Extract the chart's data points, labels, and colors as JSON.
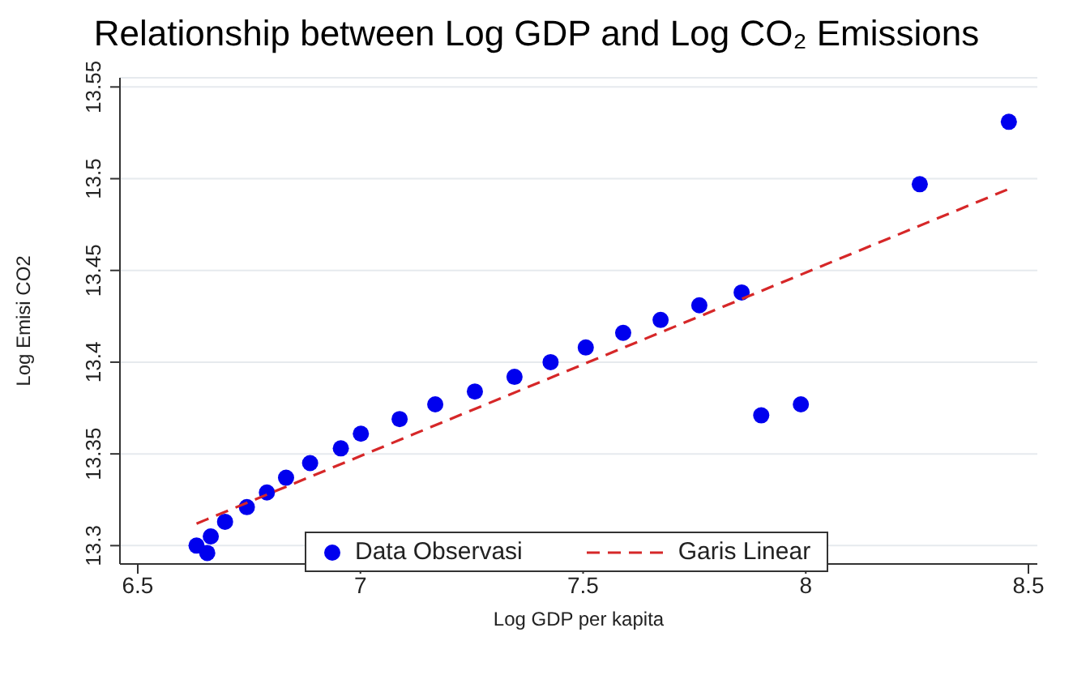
{
  "chart_data": {
    "type": "scatter",
    "title": "Relationship between Log GDP and Log CO₂ Emissions",
    "xlabel": "Log GDP per kapita",
    "ylabel": "Log Emisi CO2",
    "xlim": [
      6.46,
      8.52
    ],
    "xticks": [
      6.5,
      7,
      7.5,
      8,
      8.5
    ],
    "ylim": [
      13.29,
      13.555
    ],
    "yticks": [
      13.3,
      13.35,
      13.4,
      13.45,
      13.5,
      13.55
    ],
    "grid": "y",
    "legend": "bottom",
    "series": [
      {
        "name": "Data Observasi",
        "type": "scatter",
        "marker": "circle",
        "color": "#0000ee",
        "x": [
          6.632,
          6.656,
          6.664,
          6.696,
          6.745,
          6.79,
          6.833,
          6.887,
          6.956,
          7.001,
          7.088,
          7.168,
          7.257,
          7.346,
          7.427,
          7.506,
          7.59,
          7.674,
          7.761,
          7.856,
          7.9,
          7.989,
          8.256,
          8.456
        ],
        "values": [
          13.3,
          13.296,
          13.305,
          13.313,
          13.321,
          13.329,
          13.337,
          13.345,
          13.353,
          13.361,
          13.369,
          13.377,
          13.384,
          13.392,
          13.4,
          13.408,
          13.416,
          13.423,
          13.431,
          13.438,
          13.371,
          13.377,
          13.497,
          13.531
        ]
      },
      {
        "name": "Garis Linear",
        "type": "line",
        "line_style": "dashed",
        "color": "#d62728",
        "x": [
          6.632,
          8.452
        ],
        "values": [
          13.312,
          13.494
        ]
      }
    ]
  }
}
